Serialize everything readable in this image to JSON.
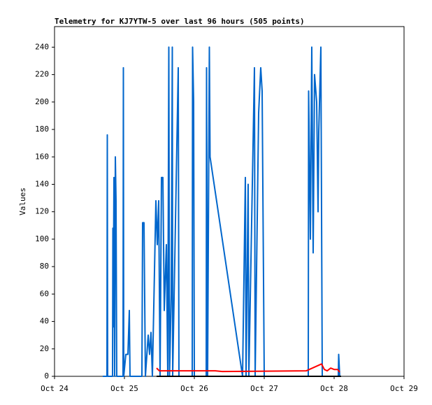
{
  "chart_data": {
    "type": "line",
    "title": "Telemetry for KJ7YTW-5 over last 96 hours (505 points)",
    "y_label": "Values",
    "xlim": [
      0,
      5
    ],
    "xticks": [
      {
        "value": 0,
        "label": "Oct 24"
      },
      {
        "value": 1,
        "label": "Oct 25"
      },
      {
        "value": 2,
        "label": "Oct 26"
      },
      {
        "value": 3,
        "label": "Oct 27"
      },
      {
        "value": 4,
        "label": "Oct 28"
      },
      {
        "value": 5,
        "label": "Oct 29"
      }
    ],
    "ylim": [
      0,
      255
    ],
    "yticks": [
      0,
      20,
      40,
      60,
      80,
      100,
      120,
      140,
      160,
      180,
      200,
      220,
      240
    ],
    "series": [
      {
        "color": "#0066cc",
        "x": [
          0.69,
          0.75,
          0.755,
          0.76,
          0.83,
          0.835,
          0.84,
          0.85,
          0.86,
          0.87,
          0.88,
          0.89,
          0.98,
          0.985,
          0.99,
          1.02,
          1.05,
          1.07,
          1.08,
          1.25,
          1.26,
          1.28,
          1.3,
          1.34,
          1.36,
          1.38,
          1.4,
          1.45,
          1.47,
          1.49,
          1.51,
          1.53,
          1.55,
          1.57,
          1.6,
          1.62,
          1.635,
          1.645,
          1.67,
          1.685,
          1.69,
          1.77,
          1.78,
          1.97,
          1.975,
          1.99,
          2.0,
          2.17,
          2.175,
          2.19,
          2.215,
          2.225,
          2.69,
          2.73,
          2.74,
          2.77,
          2.78,
          2.86,
          2.87,
          2.92,
          2.95,
          2.97,
          3.0,
          3.63,
          3.635,
          3.66,
          3.68,
          3.7,
          3.72,
          3.75,
          3.77,
          3.78,
          3.81,
          3.83,
          4.06,
          4.065,
          4.08
        ],
        "values": [
          0,
          0,
          176,
          0,
          0,
          108,
          36,
          145,
          0,
          160,
          128,
          0,
          0,
          225,
          0,
          16,
          16,
          48,
          0,
          0,
          112,
          112,
          0,
          30,
          16,
          32,
          0,
          128,
          96,
          128,
          0,
          145,
          145,
          48,
          96,
          0,
          240,
          0,
          60,
          240,
          0,
          225,
          0,
          0,
          240,
          200,
          0,
          0,
          225,
          0,
          240,
          160,
          0,
          145,
          0,
          140,
          0,
          225,
          0,
          192,
          225,
          208,
          0,
          0,
          208,
          100,
          240,
          90,
          220,
          200,
          120,
          178,
          240,
          0,
          0,
          16,
          0
        ]
      },
      {
        "color": "#ff0000",
        "x": [
          1.46,
          1.5,
          1.7,
          2.3,
          2.4,
          3.6,
          3.82,
          3.86,
          3.9,
          3.95,
          4.0,
          4.05,
          4.08
        ],
        "values": [
          6,
          4,
          4,
          4,
          3.5,
          4,
          9,
          5,
          4,
          6,
          5,
          5,
          3
        ]
      },
      {
        "color": "#000000",
        "x": [
          1.46,
          4.1
        ],
        "values": [
          0,
          0
        ]
      }
    ]
  }
}
